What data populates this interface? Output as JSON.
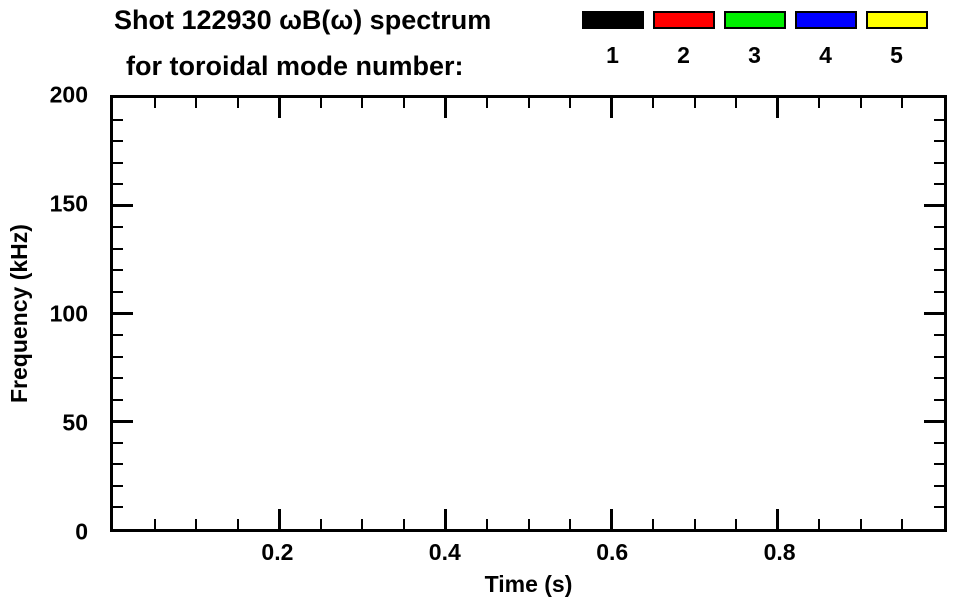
{
  "title": {
    "line1": "Shot 122930 ωB(ω) spectrum",
    "line2": "for toroidal mode number:"
  },
  "legend": {
    "entries": [
      {
        "label": "1",
        "color": "#000000"
      },
      {
        "label": "2",
        "color": "#ff0000"
      },
      {
        "label": "3",
        "color": "#00ee00"
      },
      {
        "label": "4",
        "color": "#0000ff"
      },
      {
        "label": "5",
        "color": "#ffff00"
      }
    ]
  },
  "axes": {
    "x": {
      "label": "Time (s)",
      "min": 0,
      "max": 1.0,
      "major_ticks": [
        0.2,
        0.4,
        0.6,
        0.8
      ],
      "tick_labels": [
        "0.2",
        "0.4",
        "0.6",
        "0.8"
      ],
      "minor_step": 0.05
    },
    "y": {
      "label": "Frequency (kHz)",
      "min": 0,
      "max": 200,
      "major_ticks": [
        0,
        50,
        100,
        150,
        200
      ],
      "tick_labels": [
        "0",
        "50",
        "100",
        "150",
        "200"
      ],
      "minor_step": 10
    }
  },
  "chart_data": {
    "type": "scatter",
    "title": "Shot 122930 ωB(ω) spectrum for toroidal mode number:",
    "xlabel": "Time (s)",
    "ylabel": "Frequency (kHz)",
    "xlim": [
      0,
      1.0
    ],
    "ylim": [
      0,
      200
    ],
    "grid": false,
    "legend_position": "top",
    "legend_entries": [
      "1",
      "2",
      "3",
      "4",
      "5"
    ],
    "series": [
      {
        "name": "1",
        "color": "#000000",
        "points": []
      },
      {
        "name": "2",
        "color": "#ff0000",
        "points": []
      },
      {
        "name": "3",
        "color": "#00ee00",
        "points": []
      },
      {
        "name": "4",
        "color": "#0000ff",
        "points": []
      },
      {
        "name": "5",
        "color": "#ffff00",
        "points": []
      }
    ]
  }
}
